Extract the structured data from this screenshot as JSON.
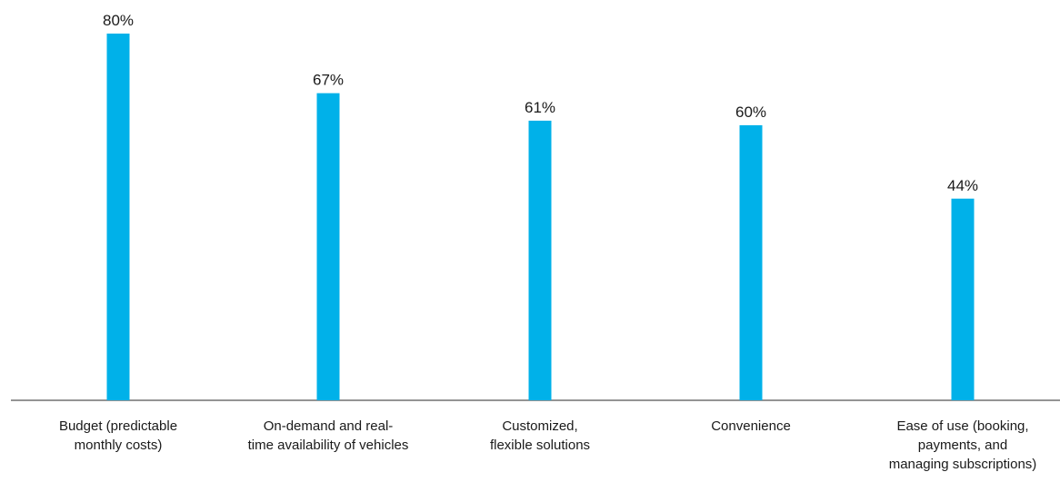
{
  "chart_data": {
    "type": "bar",
    "categories": [
      [
        "Budget (predictable",
        "monthly costs)"
      ],
      [
        "On-demand and real-",
        "time availability of vehicles"
      ],
      [
        "Customized,",
        "flexible solutions"
      ],
      [
        "Convenience"
      ],
      [
        "Ease of use (booking,",
        "payments, and",
        "managing subscriptions)"
      ]
    ],
    "values": [
      80,
      67,
      61,
      60,
      44
    ],
    "value_labels": [
      "80%",
      "67%",
      "61%",
      "60%",
      "44%"
    ],
    "title": "",
    "xlabel": "",
    "ylabel": "",
    "ylim": [
      0,
      100
    ],
    "grid": false,
    "legend": "none",
    "bar_color": "#00b1e9",
    "axis_color": "#555555"
  }
}
